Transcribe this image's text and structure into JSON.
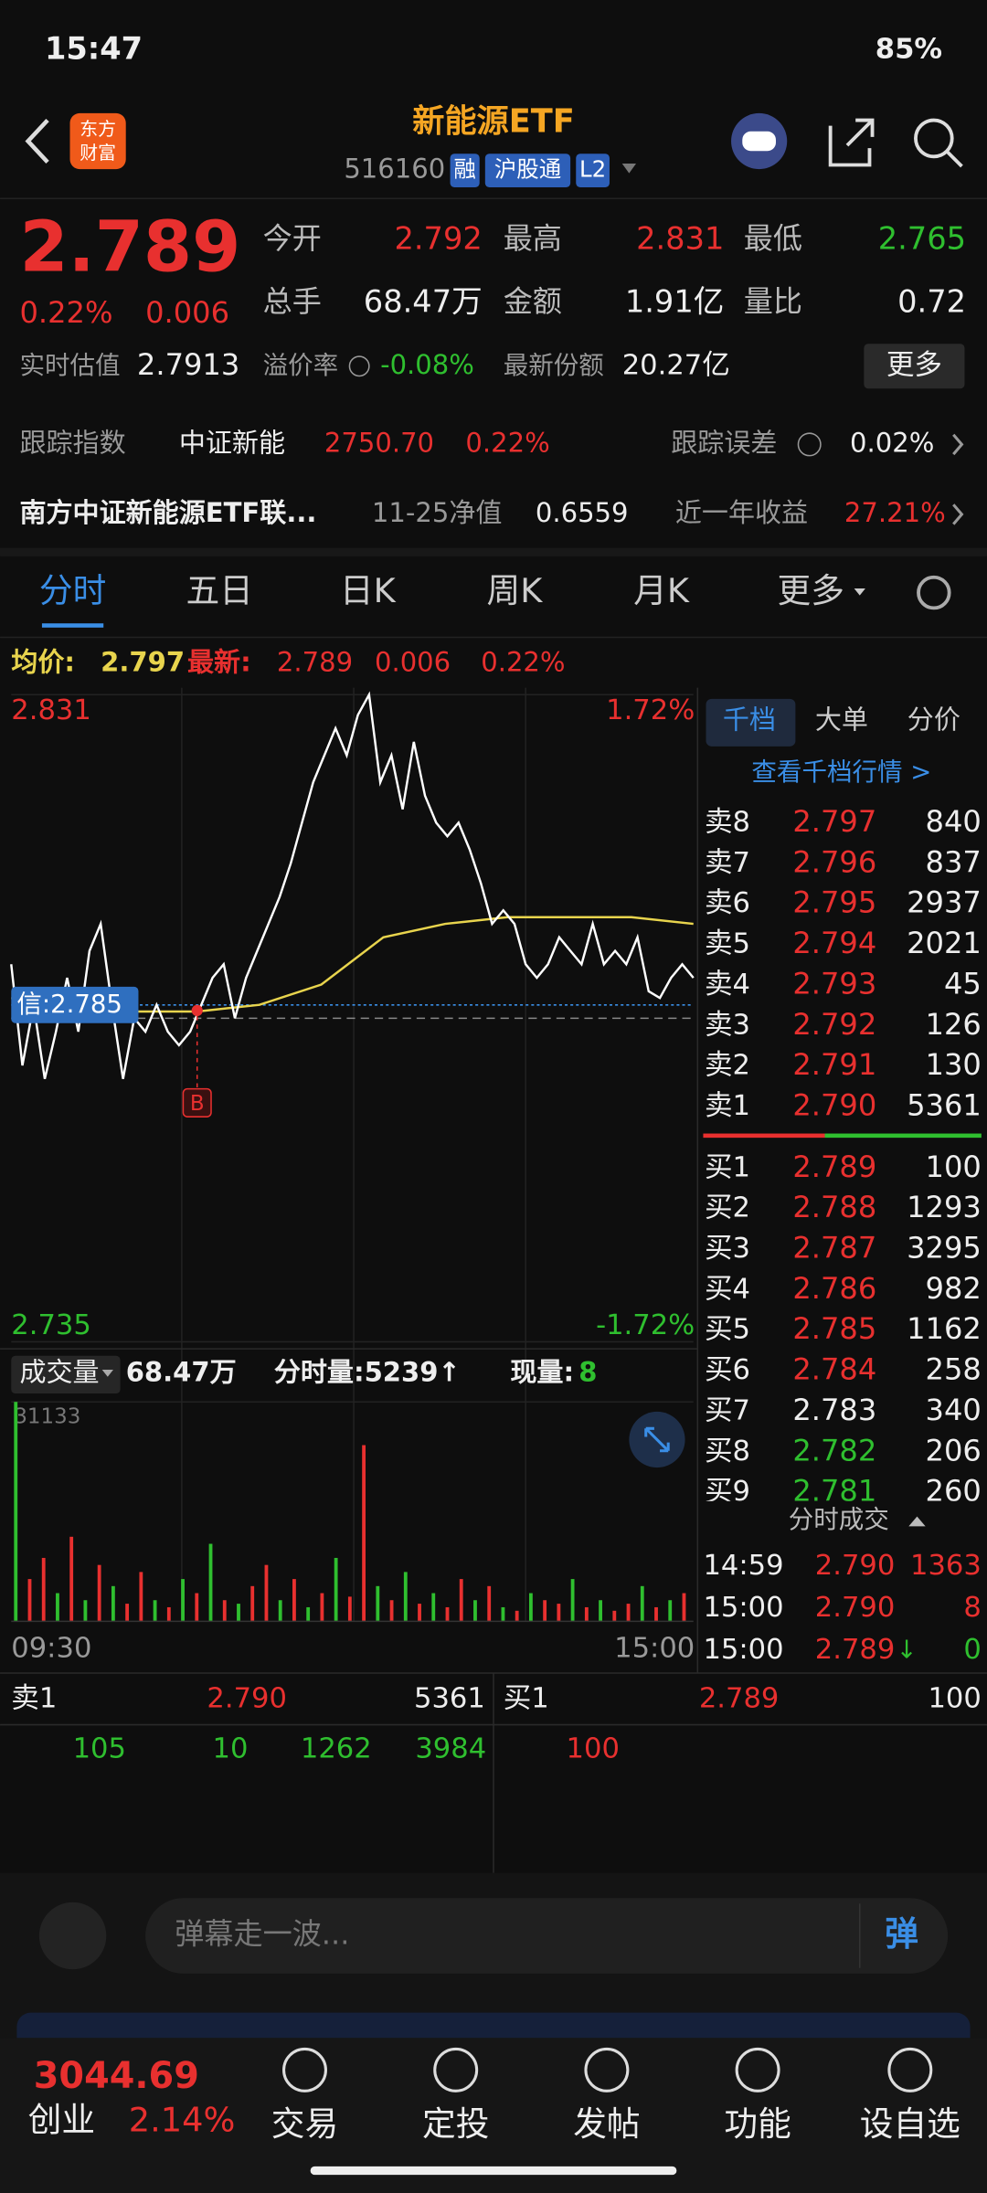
{
  "status_bar": {
    "time": "15:47",
    "battery": "85%"
  },
  "header": {
    "logo": [
      "东方",
      "财富"
    ],
    "title": "新能源ETF",
    "code": "516160",
    "tags": [
      "融",
      "沪股通",
      "L2"
    ]
  },
  "quote": {
    "price": "2.789",
    "change_pct": "0.22%",
    "change": "0.006",
    "fields": [
      [
        {
          "label": "今开",
          "value": "2.792",
          "color": "#e8302f"
        },
        {
          "label": "最高",
          "value": "2.831",
          "color": "#e8302f"
        },
        {
          "label": "最低",
          "value": "2.765",
          "color": "#2fbf2f"
        }
      ],
      [
        {
          "label": "总手",
          "value": "68.47万",
          "color": "#eeeeee"
        },
        {
          "label": "金额",
          "value": "1.91亿",
          "color": "#eeeeee"
        },
        {
          "label": "量比",
          "value": "0.72",
          "color": "#eeeeee"
        }
      ]
    ],
    "estimate": {
      "label": "实时估值",
      "value": "2.7913"
    },
    "premium": {
      "label": "溢价率",
      "value": "-0.08%"
    },
    "shares": {
      "label": "最新份额",
      "value": "20.27亿"
    },
    "more_button": "更多",
    "tracking": {
      "label": "跟踪指数",
      "index": "中证新能",
      "index_value": "2750.70",
      "index_change": "0.22%",
      "error_label": "跟踪误差",
      "error": "0.02%"
    },
    "fund": {
      "name": "南方中证新能源ETF联...",
      "nav_label": "11-25净值",
      "nav": "0.6559",
      "return_label": "近一年收益",
      "return": "27.21%"
    }
  },
  "tabs": [
    "分时",
    "五日",
    "日K",
    "周K",
    "月K",
    "更多"
  ],
  "intraday": {
    "avg_label": "均价:",
    "avg": "2.797",
    "last_label": "最新:",
    "last": "2.789",
    "change": "0.006",
    "change_pct": "0.22%",
    "ylim": [
      2.735,
      2.831
    ],
    "top_pct": "1.72%",
    "bottom_pct": "-1.72%",
    "signal_label": "信:2.785",
    "buy_marker": "B",
    "price_color": "#ffffff",
    "avg_color": "#e8d44d",
    "price": [
      2.791,
      2.776,
      2.785,
      2.774,
      2.781,
      2.789,
      2.781,
      2.793,
      2.797,
      2.785,
      2.774,
      2.783,
      2.781,
      2.785,
      2.781,
      2.779,
      2.781,
      2.785,
      2.789,
      2.791,
      2.783,
      2.789,
      2.793,
      2.797,
      2.801,
      2.806,
      2.812,
      2.818,
      2.822,
      2.826,
      2.822,
      2.828,
      2.831,
      2.818,
      2.822,
      2.814,
      2.824,
      2.816,
      2.812,
      2.81,
      2.812,
      2.808,
      2.803,
      2.797,
      2.799,
      2.797,
      2.791,
      2.789,
      2.791,
      2.795,
      2.793,
      2.791,
      2.797,
      2.791,
      2.793,
      2.791,
      2.795,
      2.787,
      2.786,
      2.789,
      2.791,
      2.789
    ],
    "avg_line": [
      2.786,
      2.785,
      2.784,
      2.784,
      2.785,
      2.788,
      2.795,
      2.797,
      2.798,
      2.798,
      2.798,
      2.797
    ],
    "volume_label": "成交量",
    "volume_total": "68.47万",
    "minute_volume": "分时量:5239↑",
    "current_label": "现量:",
    "current": "8",
    "volume_ylim": [
      0,
      31133
    ],
    "volume": [
      31133,
      6000,
      9000,
      4000,
      12000,
      3000,
      8000,
      5000,
      2500,
      7000,
      3000,
      2000,
      6000,
      4000,
      11000,
      3000,
      2500,
      5000,
      8000,
      3000,
      6000,
      2000,
      4000,
      9000,
      3500,
      25000,
      5000,
      3000,
      7000,
      2500,
      4000,
      2000,
      6000,
      3000,
      5000,
      2000,
      1500,
      4000,
      3000,
      2500,
      6000,
      2000,
      3000,
      1500,
      2500,
      5000,
      2000,
      3000,
      4000
    ],
    "volume_colors": [
      "#2fbf2f",
      "#e8302f",
      "#e8302f",
      "#2fbf2f",
      "#e8302f",
      "#2fbf2f",
      "#e8302f",
      "#2fbf2f",
      "#e8302f",
      "#e8302f",
      "#2fbf2f",
      "#e8302f",
      "#2fbf2f",
      "#e8302f",
      "#2fbf2f",
      "#e8302f",
      "#2fbf2f",
      "#e8302f",
      "#e8302f",
      "#2fbf2f",
      "#e8302f",
      "#2fbf2f",
      "#e8302f",
      "#2fbf2f",
      "#e8302f",
      "#e8302f",
      "#2fbf2f",
      "#e8302f",
      "#2fbf2f",
      "#e8302f",
      "#2fbf2f",
      "#e8302f",
      "#e8302f",
      "#2fbf2f",
      "#e8302f",
      "#2fbf2f",
      "#e8302f",
      "#2fbf2f",
      "#e8302f",
      "#e8302f",
      "#2fbf2f",
      "#e8302f",
      "#2fbf2f",
      "#e8302f",
      "#e8302f",
      "#2fbf2f",
      "#e8302f",
      "#2fbf2f",
      "#e8302f"
    ],
    "time_start": "09:30",
    "time_end": "15:00"
  },
  "order_book": {
    "tabs": [
      "千档",
      "大单",
      "分价"
    ],
    "link": "查看千档行情 >",
    "asks": [
      {
        "level": "卖8",
        "price": "2.797",
        "volume": "840",
        "color": "#e8302f"
      },
      {
        "level": "卖7",
        "price": "2.796",
        "volume": "837",
        "color": "#e8302f"
      },
      {
        "level": "卖6",
        "price": "2.795",
        "volume": "2937",
        "color": "#e8302f"
      },
      {
        "level": "卖5",
        "price": "2.794",
        "volume": "2021",
        "color": "#e8302f"
      },
      {
        "level": "卖4",
        "price": "2.793",
        "volume": "45",
        "color": "#e8302f"
      },
      {
        "level": "卖3",
        "price": "2.792",
        "volume": "126",
        "color": "#e8302f"
      },
      {
        "level": "卖2",
        "price": "2.791",
        "volume": "130",
        "color": "#e8302f"
      },
      {
        "level": "卖1",
        "price": "2.790",
        "volume": "5361",
        "color": "#e8302f"
      }
    ],
    "bids": [
      {
        "level": "买1",
        "price": "2.789",
        "volume": "100",
        "color": "#e8302f"
      },
      {
        "level": "买2",
        "price": "2.788",
        "volume": "1293",
        "color": "#e8302f"
      },
      {
        "level": "买3",
        "price": "2.787",
        "volume": "3295",
        "color": "#e8302f"
      },
      {
        "level": "买4",
        "price": "2.786",
        "volume": "982",
        "color": "#e8302f"
      },
      {
        "level": "买5",
        "price": "2.785",
        "volume": "1162",
        "color": "#e8302f"
      },
      {
        "level": "买6",
        "price": "2.784",
        "volume": "258",
        "color": "#e8302f"
      },
      {
        "level": "买7",
        "price": "2.783",
        "volume": "340",
        "color": "#eeeeee"
      },
      {
        "level": "买8",
        "price": "2.782",
        "volume": "206",
        "color": "#2fbf2f"
      },
      {
        "level": "买9",
        "price": "2.781",
        "volume": "260",
        "color": "#2fbf2f"
      }
    ],
    "trades_title": "分时成交",
    "trades": [
      {
        "time": "14:59",
        "price": "2.790",
        "volume": "1363",
        "color": "#e8302f",
        "volume_color": "#e8302f"
      },
      {
        "time": "15:00",
        "price": "2.790",
        "volume": "8",
        "color": "#e8302f",
        "volume_color": "#e8302f"
      },
      {
        "time": "15:00",
        "price": "2.789",
        "arrow": "↓",
        "volume": "0",
        "color": "#e8302f",
        "volume_color": "#2fbf2f"
      }
    ]
  },
  "summary": {
    "ask": {
      "level": "卖1",
      "price": "2.790",
      "volume": "5361"
    },
    "bid": {
      "level": "买1",
      "price": "2.789",
      "volume": "100"
    },
    "ask_orders": [
      "105",
      "10",
      "1262",
      "3984"
    ],
    "bid_orders": [
      "100"
    ]
  },
  "comment": {
    "placeholder": "弹幕走一波...",
    "button": "弹"
  },
  "bottom_nav": {
    "index_value": "3044.69",
    "index_name": "创业",
    "index_change": "2.14%",
    "items": [
      "交易",
      "定投",
      "发帖",
      "功能",
      "设自选"
    ]
  }
}
